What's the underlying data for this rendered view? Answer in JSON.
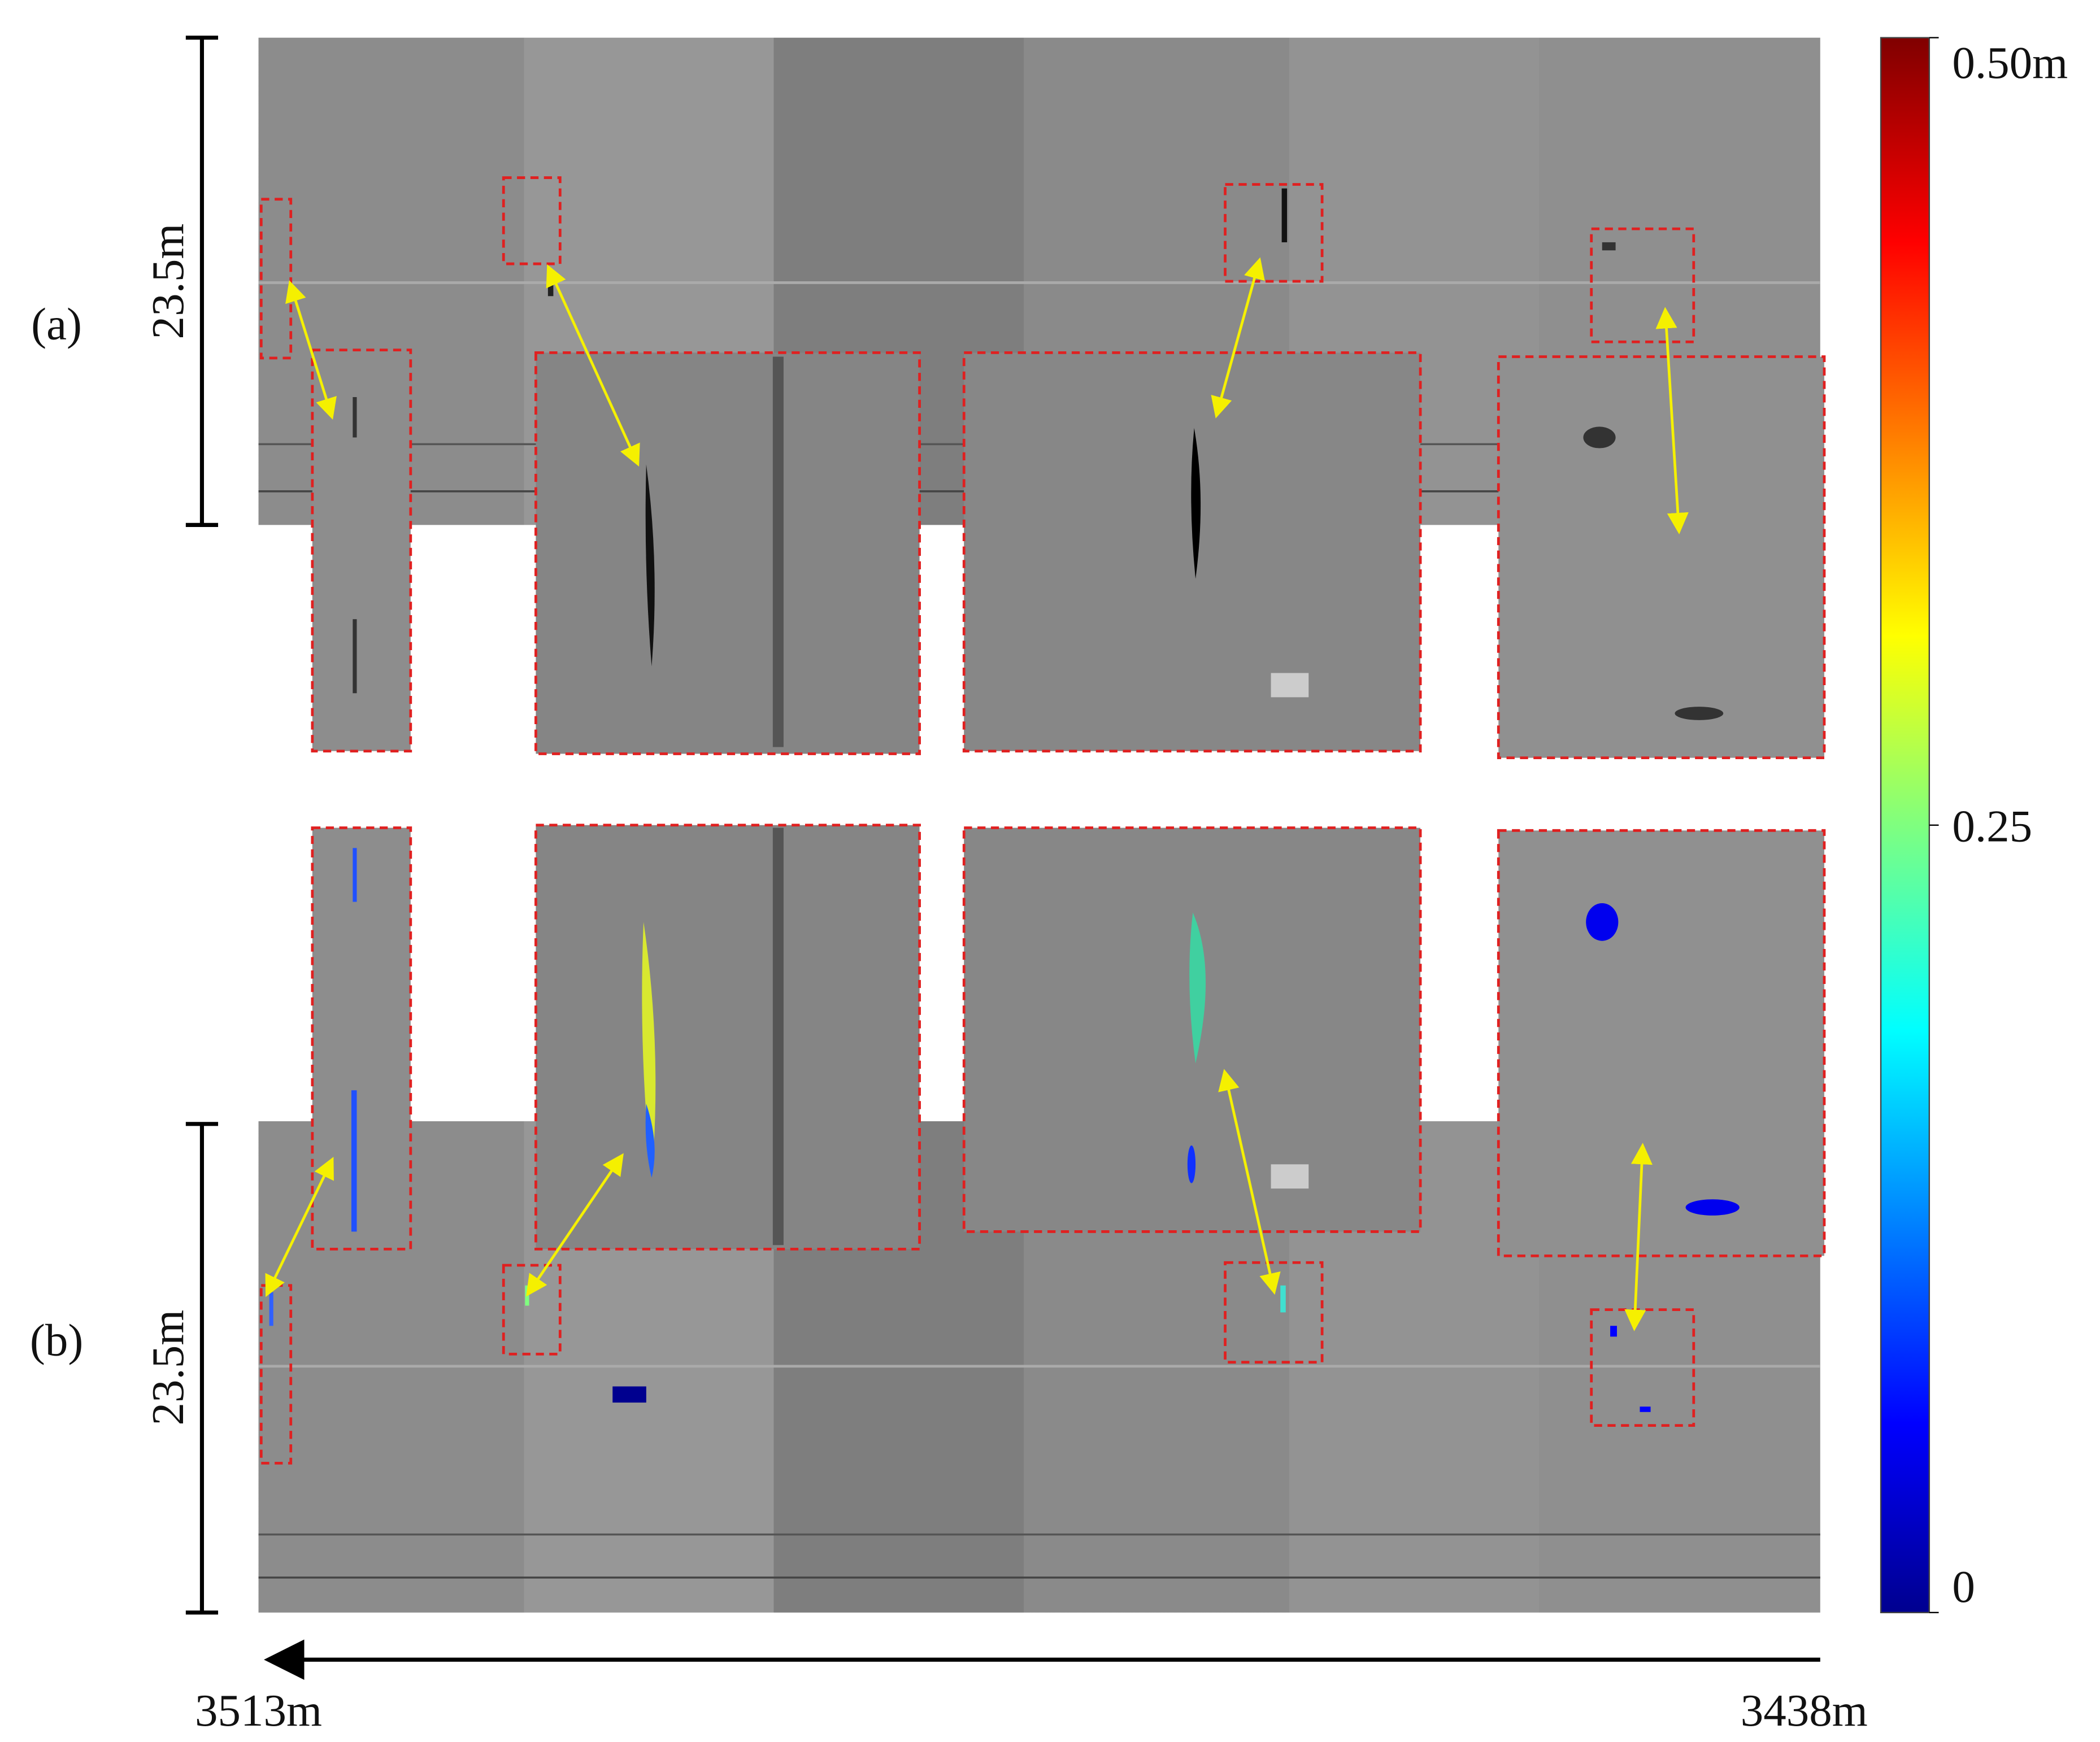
{
  "panels": [
    {
      "label": "(a)",
      "height_label": "23.5m"
    },
    {
      "label": "(b)",
      "height_label": "23.5m"
    }
  ],
  "distance_axis": {
    "start_label": "3513m",
    "end_label": "3438m"
  },
  "colorbar": {
    "lim": [
      0,
      0.5
    ],
    "ticks": [
      0,
      0.25,
      {
        "value": 0.5,
        "label": "0.50m"
      }
    ]
  }
}
